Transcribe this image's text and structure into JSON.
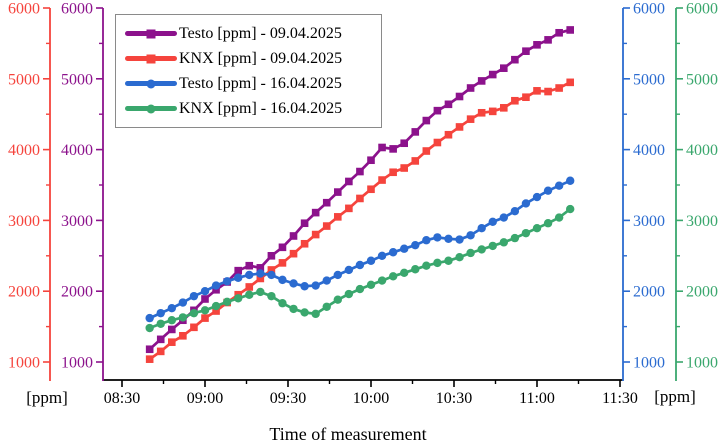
{
  "chart_data": {
    "type": "line",
    "title": "",
    "xlabel": "Time of measurement",
    "ylabel_left": "[ppm]",
    "ylabel_right": "[ppm]",
    "x_tick_labels": [
      "08:30",
      "09:00",
      "09:30",
      "10:00",
      "10:30",
      "11:00",
      "11:30"
    ],
    "y_ticks": [
      1000,
      2000,
      3000,
      4000,
      5000,
      6000
    ],
    "y_minor_ticks": [
      1500,
      2500,
      3500,
      4500,
      5500
    ],
    "x_minor_tick_interval_min": 15,
    "ylim": [
      760,
      6050
    ],
    "xlim_time": [
      "08:23",
      "11:30"
    ],
    "legend_position": "top-left",
    "grid": "off",
    "x": [
      "08:40",
      "08:44",
      "08:48",
      "08:52",
      "08:56",
      "09:00",
      "09:04",
      "09:08",
      "09:12",
      "09:16",
      "09:20",
      "09:24",
      "09:28",
      "09:32",
      "09:36",
      "09:40",
      "09:44",
      "09:48",
      "09:52",
      "09:56",
      "10:00",
      "10:04",
      "10:08",
      "10:12",
      "10:16",
      "10:20",
      "10:24",
      "10:28",
      "10:32",
      "10:36",
      "10:40",
      "10:44",
      "10:48",
      "10:52",
      "10:56",
      "11:00",
      "11:04",
      "11:08",
      "11:12"
    ],
    "series": [
      {
        "name": "Testo [ppm] - 09.04.2025",
        "color": "#8c128c",
        "marker": "square",
        "axis": "left-inner",
        "values": [
          1180,
          1320,
          1460,
          1590,
          1730,
          1890,
          2020,
          2130,
          2290,
          2360,
          2330,
          2500,
          2620,
          2780,
          2960,
          3110,
          3250,
          3400,
          3550,
          3690,
          3850,
          4030,
          4010,
          4090,
          4250,
          4410,
          4550,
          4640,
          4750,
          4870,
          4970,
          5060,
          5150,
          5270,
          5390,
          5480,
          5550,
          5650,
          5690
        ]
      },
      {
        "name": "KNX [ppm] - 09.04.2025",
        "color": "#f5443d",
        "marker": "square",
        "axis": "left-outer",
        "values": [
          1040,
          1150,
          1280,
          1370,
          1490,
          1620,
          1720,
          1840,
          1950,
          2060,
          2180,
          2300,
          2400,
          2530,
          2670,
          2800,
          2920,
          3050,
          3170,
          3310,
          3440,
          3570,
          3680,
          3740,
          3840,
          3980,
          4100,
          4210,
          4320,
          4430,
          4520,
          4540,
          4590,
          4690,
          4740,
          4830,
          4820,
          4870,
          4950
        ]
      },
      {
        "name": "Testo [ppm] - 16.04.2025",
        "color": "#2b6bd0",
        "marker": "circle",
        "axis": "right-inner",
        "values": [
          1620,
          1690,
          1760,
          1840,
          1930,
          2000,
          2080,
          2140,
          2190,
          2230,
          2250,
          2230,
          2160,
          2110,
          2070,
          2080,
          2150,
          2230,
          2300,
          2370,
          2430,
          2500,
          2550,
          2600,
          2650,
          2720,
          2760,
          2740,
          2730,
          2790,
          2890,
          2980,
          3040,
          3130,
          3240,
          3330,
          3420,
          3490,
          3560
        ]
      },
      {
        "name": "KNX [ppm] - 16.04.2025",
        "color": "#3aa76d",
        "marker": "circle",
        "axis": "right-outer",
        "values": [
          1480,
          1540,
          1590,
          1630,
          1690,
          1730,
          1790,
          1850,
          1900,
          1950,
          1990,
          1930,
          1830,
          1750,
          1700,
          1680,
          1780,
          1880,
          1960,
          2030,
          2090,
          2150,
          2210,
          2260,
          2310,
          2360,
          2400,
          2430,
          2480,
          2540,
          2590,
          2640,
          2690,
          2750,
          2820,
          2890,
          2960,
          3040,
          3160
        ]
      }
    ],
    "axes": {
      "left_outer_color": "#f5443d",
      "left_inner_color": "#8c128c",
      "right_inner_color": "#2b6bd0",
      "right_outer_color": "#3aa76d",
      "x_axis_color": "#000000"
    }
  }
}
